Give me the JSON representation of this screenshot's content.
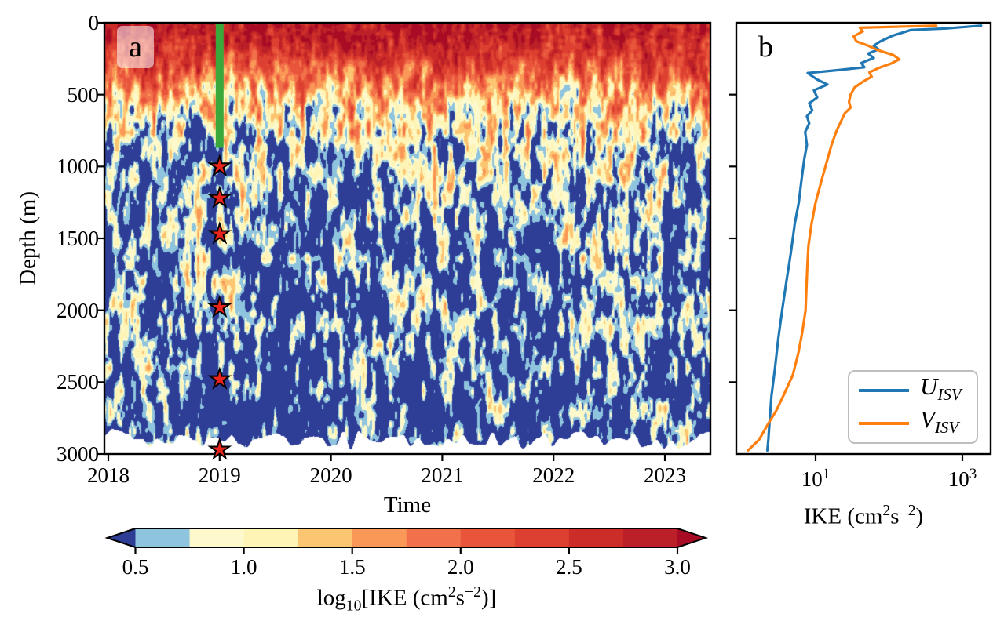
{
  "figure": {
    "background": "#ffffff"
  },
  "panel_a": {
    "label": "a",
    "xlabel": "Time",
    "ylabel": "Depth (m)"
  },
  "panel_b": {
    "label": "b",
    "xlabel_parts": [
      {
        "t": "IKE (cm"
      },
      {
        "sup": "2"
      },
      {
        "t": "s"
      },
      {
        "sup": "−2"
      },
      {
        "t": ")"
      }
    ],
    "x_tick_parts": [
      {
        "base": "10",
        "exp": "1",
        "value": 10
      },
      {
        "base": "10",
        "exp": "3",
        "value": 1000
      }
    ],
    "legend": [
      {
        "base": "U",
        "sub": "ISV",
        "color": "#1f77b4"
      },
      {
        "base": "V",
        "sub": "ISV",
        "color": "#ff7f0e"
      }
    ]
  },
  "colorbar": {
    "label_parts": [
      {
        "t": "log"
      },
      {
        "sub": "10"
      },
      {
        "t": "[IKE (cm"
      },
      {
        "sup": "2"
      },
      {
        "t": "s"
      },
      {
        "sup": "−2"
      },
      {
        "t": ")]"
      }
    ],
    "tick_labels": [
      "0.5",
      "1.0",
      "1.5",
      "2.0",
      "2.5",
      "3.0"
    ],
    "tick_values": [
      0.5,
      1.0,
      1.5,
      2.0,
      2.5,
      3.0
    ],
    "levels": [
      0.5,
      0.75,
      1.0,
      1.25,
      1.5,
      1.75,
      2.0,
      2.25,
      2.5,
      2.75,
      3.0
    ],
    "colors": [
      "#8ec4dd",
      "#fdf9cc",
      "#fdf4b5",
      "#fcc572",
      "#fa9857",
      "#f2704a",
      "#e8553a",
      "#dd4030",
      "#cd2d28",
      "#bb2028"
    ],
    "under": "#2e3d96",
    "over": "#a80c25"
  },
  "chart_data": [
    {
      "type": "heatmap",
      "title": "",
      "xlabel": "Time",
      "ylabel": "Depth (m)",
      "x_ticks": [
        2018,
        2019,
        2020,
        2021,
        2022,
        2023
      ],
      "y_ticks": [
        0,
        500,
        1000,
        1500,
        2000,
        2500,
        3000
      ],
      "x_range": [
        2017.97,
        2023.41
      ],
      "y_range": [
        0,
        3000
      ],
      "value_label": "log10[IKE (cm2 s-2)]",
      "value_levels": [
        0.5,
        3.0
      ],
      "colormap_note": "blue-yellow-red filled contours, under=dark blue, over=dark red",
      "base_log10_profile": [
        [
          0,
          2.85
        ],
        [
          120,
          2.7
        ],
        [
          220,
          2.45
        ],
        [
          320,
          2.1
        ],
        [
          420,
          1.75
        ],
        [
          520,
          1.45
        ],
        [
          620,
          1.15
        ],
        [
          720,
          0.92
        ],
        [
          820,
          0.75
        ],
        [
          950,
          0.62
        ],
        [
          1100,
          0.55
        ],
        [
          1400,
          0.48
        ],
        [
          1800,
          0.42
        ],
        [
          2400,
          0.38
        ],
        [
          3000,
          0.36
        ]
      ],
      "noise_amplitude_profile": [
        [
          0,
          0.5
        ],
        [
          200,
          0.62
        ],
        [
          350,
          0.85
        ],
        [
          500,
          0.95
        ],
        [
          800,
          0.95
        ],
        [
          1200,
          0.9
        ],
        [
          3000,
          0.88
        ]
      ],
      "green_bar": {
        "time": 2019,
        "depth_top": 0,
        "depth_bottom": 870,
        "color": "#3aa83a"
      },
      "stars": {
        "time": 2019,
        "depths": [
          1000,
          1220,
          1470,
          1980,
          2480,
          2970
        ],
        "fill": "#e8241c",
        "edge": "#000000"
      }
    },
    {
      "type": "line",
      "title": "",
      "xlabel": "IKE (cm2 s-2)",
      "ylabel": "Depth (m)",
      "x_scale": "log",
      "x_ticks": [
        10,
        1000
      ],
      "x_range": [
        0.83,
        2400
      ],
      "y_range": [
        0,
        3000
      ],
      "legend_position": "lower right",
      "series": [
        {
          "name": "U_ISV",
          "color": "#1f77b4",
          "depth": [
            20,
            40,
            50,
            90,
            130,
            160,
            185,
            215,
            245,
            280,
            310,
            330,
            350,
            395,
            430,
            470,
            520,
            560,
            610,
            650,
            700,
            760,
            850,
            950,
            1100,
            1250,
            1400,
            1600,
            1800,
            2000,
            2200,
            2400,
            2600,
            2750,
            2900,
            2975
          ],
          "values": [
            1800,
            600,
            200,
            112,
            76,
            62,
            72,
            52,
            62,
            42,
            46,
            20,
            7.8,
            10.5,
            14.5,
            9.5,
            10.5,
            8.2,
            9.0,
            7.6,
            8.2,
            7.2,
            7.6,
            7.0,
            6.4,
            5.9,
            5.2,
            4.6,
            4.0,
            3.5,
            3.1,
            2.8,
            2.5,
            2.38,
            2.27,
            2.2
          ]
        },
        {
          "name": "V_ISV",
          "color": "#ff7f0e",
          "depth": [
            20,
            35,
            60,
            95,
            130,
            160,
            190,
            225,
            255,
            285,
            315,
            345,
            375,
            410,
            450,
            500,
            550,
            590,
            630,
            690,
            760,
            850,
            950,
            1100,
            1250,
            1400,
            1550,
            1700,
            1850,
            2000,
            2150,
            2300,
            2450,
            2600,
            2700,
            2800,
            2900,
            2975
          ],
          "values": [
            440,
            40,
            44,
            33,
            36,
            52,
            70,
            115,
            138,
            105,
            72,
            54,
            58,
            44,
            34,
            30,
            28.5,
            30,
            25,
            22,
            19,
            16.5,
            14.5,
            12,
            10,
            8.8,
            8.0,
            7.7,
            7.5,
            7.3,
            6.6,
            5.8,
            4.9,
            3.6,
            2.9,
            2.2,
            1.7,
            1.2
          ]
        }
      ]
    }
  ]
}
